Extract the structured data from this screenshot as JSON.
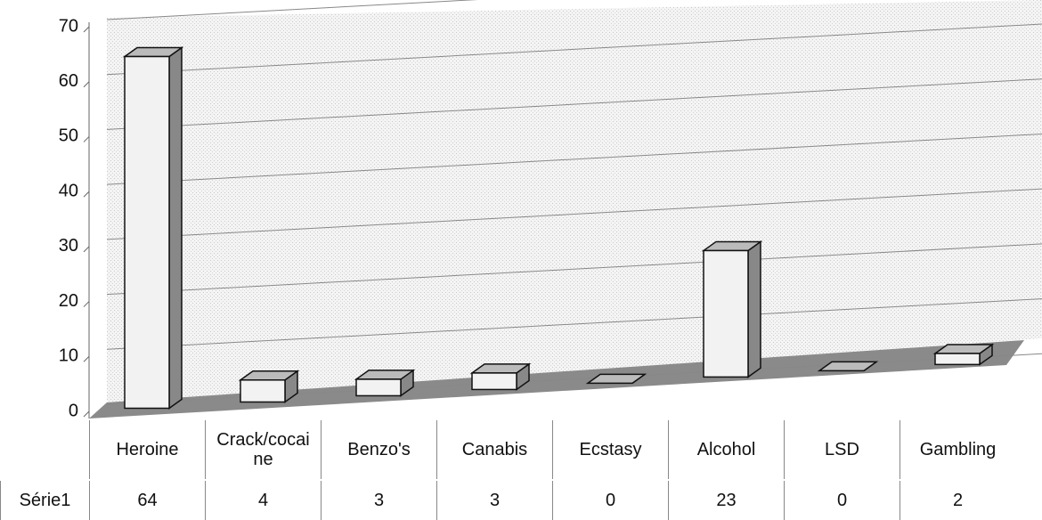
{
  "chart_data": {
    "type": "bar",
    "categories": [
      "Heroine",
      "Crack/cocaine",
      "Benzo's",
      "Canabis",
      "Ecstasy",
      "Alcohol",
      "LSD",
      "Gambling"
    ],
    "series": [
      {
        "name": "Série1",
        "color": "#f2f2f2",
        "values": [
          64,
          4,
          3,
          3,
          0,
          23,
          0,
          2
        ]
      }
    ],
    "ylim": [
      0,
      70
    ],
    "yticks": [
      0,
      10,
      20,
      30,
      40,
      50,
      60,
      70
    ],
    "grid": true
  }
}
